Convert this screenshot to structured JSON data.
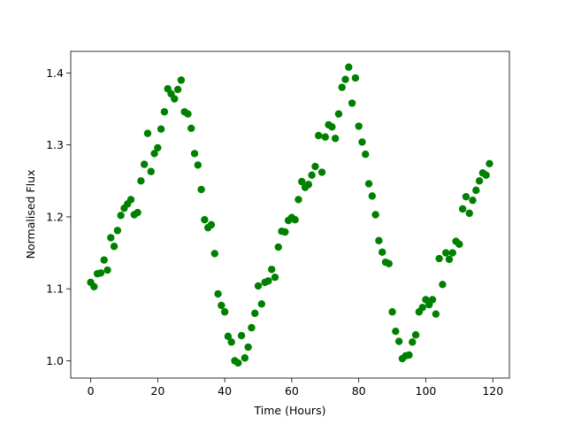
{
  "chart_data": {
    "type": "scatter",
    "xlabel": "Time (Hours)",
    "ylabel": "Normalised Flux",
    "x": [
      0,
      1,
      2,
      3,
      4,
      5,
      6,
      7,
      8,
      9,
      10,
      11,
      12,
      13,
      14,
      15,
      16,
      17,
      18,
      19,
      20,
      21,
      22,
      23,
      24,
      25,
      26,
      27,
      28,
      29,
      30,
      31,
      32,
      33,
      34,
      35,
      36,
      37,
      38,
      39,
      40,
      41,
      42,
      43,
      44,
      45,
      46,
      47,
      48,
      49,
      50,
      51,
      52,
      53,
      54,
      55,
      56,
      57,
      58,
      59,
      60,
      61,
      62,
      63,
      64,
      65,
      66,
      67,
      68,
      69,
      70,
      71,
      72,
      73,
      74,
      75,
      76,
      77,
      78,
      79,
      80,
      81,
      82,
      83,
      84,
      85,
      86,
      87,
      88,
      89,
      90,
      91,
      92,
      93,
      94,
      95,
      96,
      97,
      98,
      99,
      100,
      101,
      102,
      103,
      104,
      105,
      106,
      107,
      108,
      109,
      110,
      111,
      112,
      113,
      114,
      115,
      116,
      117,
      118,
      119
    ],
    "values": [
      1.109,
      1.103,
      1.121,
      1.122,
      1.14,
      1.126,
      1.171,
      1.159,
      1.181,
      1.202,
      1.212,
      1.218,
      1.224,
      1.203,
      1.206,
      1.25,
      1.273,
      1.316,
      1.263,
      1.288,
      1.296,
      1.322,
      1.346,
      1.378,
      1.371,
      1.364,
      1.377,
      1.39,
      1.346,
      1.343,
      1.323,
      1.288,
      1.272,
      1.238,
      1.196,
      1.185,
      1.189,
      1.149,
      1.093,
      1.077,
      1.068,
      1.034,
      1.026,
      1.0,
      0.997,
      1.035,
      1.004,
      1.019,
      1.046,
      1.066,
      1.104,
      1.079,
      1.109,
      1.111,
      1.127,
      1.116,
      1.158,
      1.18,
      1.179,
      1.195,
      1.199,
      1.196,
      1.224,
      1.249,
      1.241,
      1.245,
      1.258,
      1.27,
      1.313,
      1.262,
      1.311,
      1.328,
      1.325,
      1.309,
      1.343,
      1.38,
      1.391,
      1.408,
      1.358,
      1.393,
      1.326,
      1.304,
      1.287,
      1.246,
      1.229,
      1.203,
      1.167,
      1.151,
      1.137,
      1.135,
      1.068,
      1.041,
      1.027,
      1.003,
      1.007,
      1.008,
      1.026,
      1.036,
      1.068,
      1.074,
      1.085,
      1.078,
      1.085,
      1.065,
      1.142,
      1.106,
      1.15,
      1.141,
      1.15,
      1.166,
      1.162,
      1.211,
      1.228,
      1.205,
      1.223,
      1.237,
      1.25,
      1.261,
      1.258,
      1.274
    ],
    "color": "#008000",
    "xlim": [
      -5.95,
      124.95
    ],
    "xticks": [
      0,
      20,
      40,
      60,
      80,
      100,
      120
    ],
    "ylim": [
      0.976,
      1.43
    ],
    "yticks": [
      {
        "value": 1,
        "label": "1.0"
      },
      1.1,
      1.2,
      1.3,
      1.4
    ]
  }
}
